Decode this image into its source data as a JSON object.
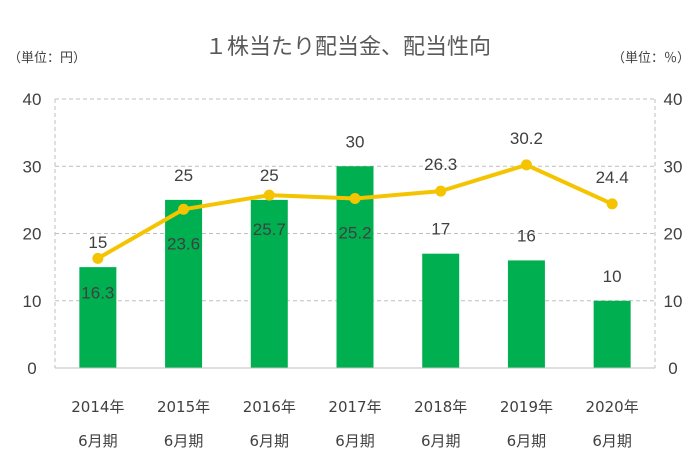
{
  "chart_data": {
    "type": "bar",
    "title": "１株当たり配当金、配当性向",
    "left_unit": "（単位：円）",
    "right_unit": "（単位：％）",
    "categories": [
      [
        "2014年",
        "6月期"
      ],
      [
        "2015年",
        "6月期"
      ],
      [
        "2016年",
        "6月期"
      ],
      [
        "2017年",
        "6月期"
      ],
      [
        "2018年",
        "6月期"
      ],
      [
        "2019年",
        "6月期"
      ],
      [
        "2020年",
        "6月期"
      ]
    ],
    "series": [
      {
        "type": "bar",
        "axis": "left",
        "color": "#00b050",
        "values": [
          15,
          25,
          25,
          30,
          17,
          16,
          10
        ]
      },
      {
        "type": "line",
        "axis": "right",
        "color": "#f5c400",
        "values": [
          16.3,
          23.6,
          25.7,
          25.2,
          26.3,
          30.2,
          24.4
        ]
      }
    ],
    "ylim": [
      0,
      40
    ],
    "y2lim": [
      0,
      40
    ],
    "yticks": [
      0,
      10,
      20,
      30,
      40
    ],
    "y2ticks": [
      0,
      10,
      20,
      30,
      40
    ],
    "grid": true
  }
}
